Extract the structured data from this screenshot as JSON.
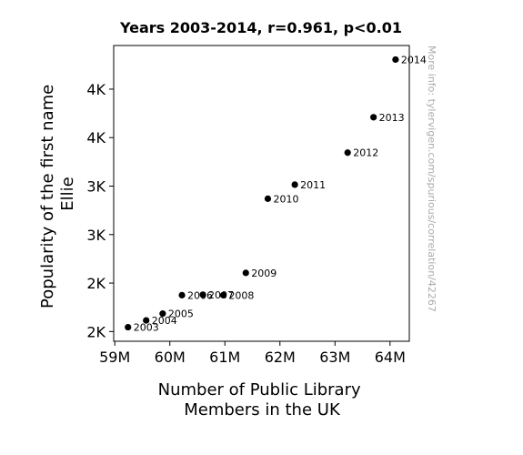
{
  "chart_data": {
    "type": "scatter",
    "title": "Years 2003-2014, r=0.961, p<0.01",
    "xlabel": [
      "Number of Public Library",
      "Members in the UK"
    ],
    "ylabel": [
      "Popularity of the first name",
      "Ellie"
    ],
    "watermark": "More info: tylervigen.com/spurious/correlation/42267",
    "xlim": [
      58.98,
      64.35
    ],
    "ylim": [
      1.4,
      4.45
    ],
    "x_ticks": [
      59,
      60,
      61,
      62,
      63,
      64
    ],
    "x_tick_labels": [
      "59M",
      "60M",
      "61M",
      "62M",
      "63M",
      "64M"
    ],
    "y_ticks": [
      1.5,
      2.0,
      2.5,
      3.0,
      3.5,
      4.0
    ],
    "y_tick_labels": [
      "2K",
      "2K",
      "3K",
      "3K",
      "4K",
      "4K"
    ],
    "x_units": "millions of members",
    "y_units": "thousands of babies",
    "grid": false,
    "marker_color": "#000000",
    "points": [
      {
        "year": "2003",
        "x": 59.24,
        "y": 1.545
      },
      {
        "year": "2004",
        "x": 59.57,
        "y": 1.615
      },
      {
        "year": "2005",
        "x": 59.87,
        "y": 1.685
      },
      {
        "year": "2006",
        "x": 60.22,
        "y": 1.875
      },
      {
        "year": "2007",
        "x": 60.6,
        "y": 1.88
      },
      {
        "year": "2008",
        "x": 60.97,
        "y": 1.875
      },
      {
        "year": "2009",
        "x": 61.38,
        "y": 2.105
      },
      {
        "year": "2010",
        "x": 61.78,
        "y": 2.87
      },
      {
        "year": "2011",
        "x": 62.27,
        "y": 3.015
      },
      {
        "year": "2012",
        "x": 63.23,
        "y": 3.345
      },
      {
        "year": "2013",
        "x": 63.7,
        "y": 3.71
      },
      {
        "year": "2014",
        "x": 64.1,
        "y": 4.305
      }
    ]
  }
}
